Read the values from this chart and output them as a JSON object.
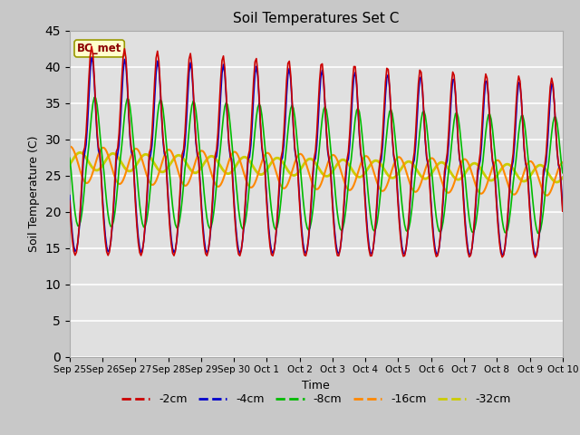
{
  "title": "Soil Temperatures Set C",
  "xlabel": "Time",
  "ylabel": "Soil Temperature (C)",
  "ylim": [
    0,
    45
  ],
  "yticks": [
    0,
    5,
    10,
    15,
    20,
    25,
    30,
    35,
    40,
    45
  ],
  "annotation": "BC_met",
  "series_labels": [
    "-2cm",
    "-4cm",
    "-8cm",
    "-16cm",
    "-32cm"
  ],
  "series_colors": [
    "#cc0000",
    "#0000cc",
    "#00bb00",
    "#ff8800",
    "#cccc00"
  ],
  "line_widths": [
    1.2,
    1.2,
    1.2,
    1.5,
    2.0
  ],
  "fig_facecolor": "#c8c8c8",
  "ax_facecolor": "#e0e0e0",
  "tick_labels": [
    "Sep 25",
    "Sep 26",
    "Sep 27",
    "Sep 28",
    "Sep 29",
    "Sep 30",
    "Oct 1",
    "Oct 2",
    "Oct 3",
    "Oct 4",
    "Oct 5",
    "Oct 6",
    "Oct 7",
    "Oct 8",
    "Oct 9",
    "Oct 10"
  ]
}
